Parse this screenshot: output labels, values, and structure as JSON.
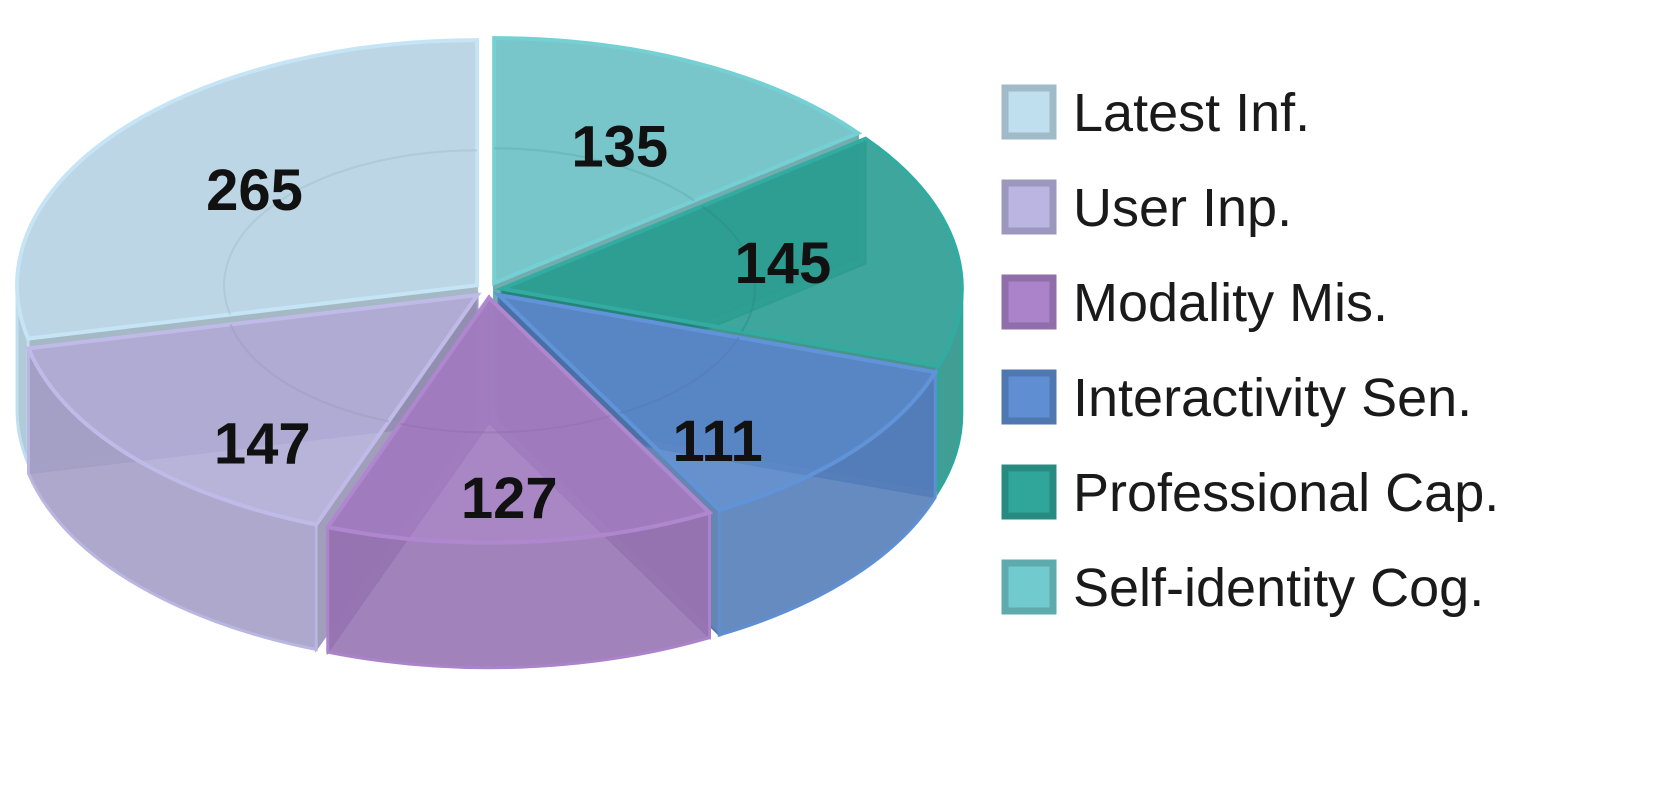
{
  "chart_data": {
    "type": "pie",
    "style": "3d-exploded",
    "legend_position": "right",
    "slices": [
      {
        "label": "Latest Inf.",
        "value": 265,
        "color": "#b6d3e3"
      },
      {
        "label": "User Inp.",
        "value": 147,
        "color": "#b1acd6"
      },
      {
        "label": "Modality Mis.",
        "value": 127,
        "color": "#a27dc0"
      },
      {
        "label": "Interactivity Sen.",
        "value": 111,
        "color": "#5a88c8"
      },
      {
        "label": "Professional Cap.",
        "value": 145,
        "color": "#2e9e94"
      },
      {
        "label": "Self-identity Cog.",
        "value": 135,
        "color": "#6cc1c4"
      }
    ]
  }
}
